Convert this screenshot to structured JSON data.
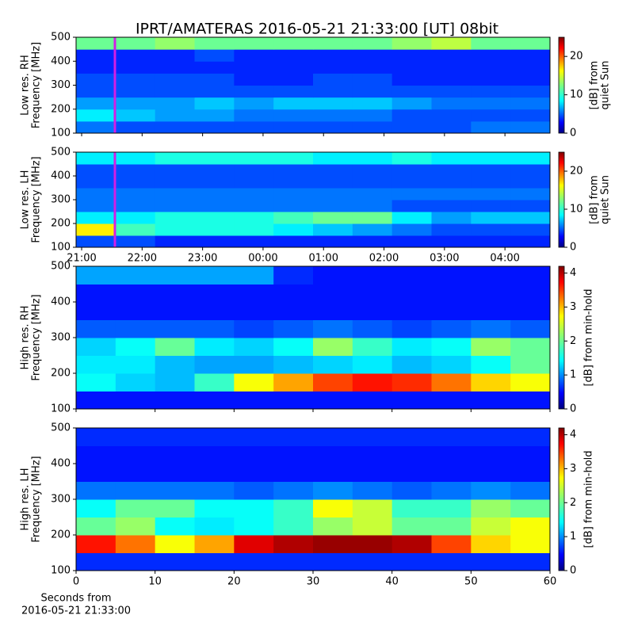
{
  "chart_data": [
    {
      "type": "heatmap",
      "title": "IPRT/AMATERAS 2016-05-21 21:33:00 [UT]   08bit",
      "ylabel": [
        "Low res. RH",
        "Frequency [MHz]"
      ],
      "ylim": [
        100,
        500
      ],
      "yticks": [
        100,
        200,
        300,
        400,
        500
      ],
      "xlim": [
        20.908,
        28.745
      ],
      "xticks": [
        21,
        22,
        23,
        24,
        25,
        26,
        27,
        28
      ],
      "xticklabels": false,
      "marker_x": 21.55,
      "marker_color": "#d21ee6",
      "colorbar_label": [
        "[dB] from",
        "quiet Sun"
      ],
      "clim": [
        0,
        25
      ],
      "cticks": [
        0,
        10,
        20
      ],
      "values": [
        [
          6,
          5,
          5,
          5,
          5,
          5,
          5,
          5,
          5,
          5,
          6,
          6
        ],
        [
          9,
          8,
          7,
          7,
          6,
          6,
          6,
          6,
          5,
          5,
          5,
          5
        ],
        [
          7,
          7,
          7,
          8,
          7,
          8,
          8,
          8,
          7,
          6,
          6,
          6
        ],
        [
          5,
          5,
          5,
          5,
          5,
          5,
          5,
          5,
          5,
          5,
          5,
          5
        ],
        [
          5,
          5,
          5,
          5,
          4,
          4,
          5,
          5,
          4,
          4,
          4,
          4
        ],
        [
          4,
          4,
          4,
          4,
          4,
          4,
          4,
          4,
          4,
          4,
          4,
          4
        ],
        [
          4,
          4,
          4,
          5,
          4,
          4,
          4,
          4,
          4,
          4,
          4,
          4
        ],
        [
          12,
          12,
          13,
          12,
          12,
          12,
          12,
          12,
          13,
          14,
          12,
          12
        ]
      ]
    },
    {
      "type": "heatmap",
      "ylabel": [
        "Low res. LH",
        "Frequency [MHz]"
      ],
      "ylim": [
        100,
        500
      ],
      "yticks": [
        100,
        200,
        300,
        400,
        500
      ],
      "xlim": [
        20.908,
        28.745
      ],
      "xticks": [
        {
          "value": 21,
          "label": "21:00"
        },
        {
          "value": 22,
          "label": "22:00"
        },
        {
          "value": 23,
          "label": "23:00"
        },
        {
          "value": 24,
          "label": "00:00"
        },
        {
          "value": 25,
          "label": "01:00"
        },
        {
          "value": 26,
          "label": "02:00"
        },
        {
          "value": 27,
          "label": "03:00"
        },
        {
          "value": 28,
          "label": "04:00"
        }
      ],
      "marker_x": 21.55,
      "marker_color": "#d21ee6",
      "colorbar_label": [
        "[dB] from",
        "quiet Sun"
      ],
      "clim": [
        0,
        25
      ],
      "cticks": [
        0,
        10,
        20
      ],
      "values": [
        [
          5,
          5,
          4,
          4,
          4,
          4,
          4,
          4,
          4,
          4,
          4,
          4
        ],
        [
          16,
          11,
          10,
          10,
          10,
          9,
          8,
          7,
          6,
          5,
          5,
          5
        ],
        [
          9,
          9,
          10,
          10,
          10,
          11,
          12,
          12,
          9,
          7,
          8,
          8
        ],
        [
          6,
          6,
          6,
          6,
          6,
          6,
          6,
          6,
          5,
          5,
          5,
          5
        ],
        [
          6,
          6,
          6,
          6,
          6,
          6,
          6,
          6,
          6,
          6,
          6,
          6
        ],
        [
          5,
          5,
          5,
          5,
          5,
          5,
          5,
          5,
          5,
          5,
          5,
          5
        ],
        [
          5,
          5,
          5,
          5,
          5,
          5,
          5,
          5,
          5,
          5,
          5,
          5
        ],
        [
          9,
          9,
          10,
          10,
          10,
          10,
          9,
          9,
          10,
          9,
          9,
          9
        ]
      ]
    },
    {
      "type": "heatmap",
      "ylabel": [
        "High res. RH",
        "Frequency [MHz]"
      ],
      "ylim": [
        100,
        500
      ],
      "yticks": [
        100,
        200,
        300,
        400,
        500
      ],
      "xlim": [
        0,
        60
      ],
      "xticks": [
        0,
        10,
        20,
        30,
        40,
        50,
        60
      ],
      "xticklabels": false,
      "colorbar_label": [
        "[dB] from min-hold"
      ],
      "clim": [
        0,
        4.2
      ],
      "cticks": [
        0,
        1,
        2,
        3,
        4
      ],
      "values": [
        [
          0.6,
          0.6,
          0.6,
          0.6,
          0.6,
          0.6,
          0.6,
          0.6,
          0.6,
          0.6,
          0.6,
          0.6
        ],
        [
          1.6,
          1.4,
          1.3,
          1.8,
          2.6,
          3.0,
          3.4,
          3.6,
          3.5,
          3.2,
          2.8,
          2.6
        ],
        [
          1.5,
          1.5,
          1.3,
          1.2,
          1.2,
          1.3,
          1.4,
          1.5,
          1.3,
          1.4,
          1.6,
          2.0
        ],
        [
          1.4,
          1.6,
          2.0,
          1.5,
          1.4,
          1.6,
          2.2,
          1.8,
          1.5,
          1.6,
          2.2,
          2.0
        ],
        [
          0.9,
          0.9,
          0.9,
          0.9,
          0.8,
          0.9,
          1.0,
          0.9,
          0.8,
          0.9,
          1.0,
          0.9
        ],
        [
          0.6,
          0.6,
          0.6,
          0.6,
          0.6,
          0.6,
          0.6,
          0.6,
          0.6,
          0.6,
          0.6,
          0.6
        ],
        [
          0.6,
          0.6,
          0.6,
          0.6,
          0.6,
          0.6,
          0.6,
          0.6,
          0.6,
          0.6,
          0.6,
          0.6
        ],
        [
          1.2,
          1.2,
          1.2,
          1.2,
          1.2,
          0.7,
          0.6,
          0.6,
          0.6,
          0.6,
          0.6,
          0.6
        ]
      ]
    },
    {
      "type": "heatmap",
      "ylabel": [
        "High res. LH",
        "Frequency [MHz]"
      ],
      "ylim": [
        100,
        500
      ],
      "yticks": [
        100,
        200,
        300,
        400,
        500
      ],
      "xlim": [
        0,
        60
      ],
      "xticks": [
        0,
        10,
        20,
        30,
        40,
        50,
        60
      ],
      "xlabel": [
        "Seconds from",
        "2016-05-21 21:33:00"
      ],
      "colorbar_label": [
        "[dB] from min-hold"
      ],
      "clim": [
        0,
        4.2
      ],
      "cticks": [
        0,
        1,
        2,
        3,
        4
      ],
      "values": [
        [
          0.7,
          0.7,
          0.7,
          0.7,
          0.7,
          0.7,
          0.7,
          0.7,
          0.7,
          0.7,
          0.7,
          0.7
        ],
        [
          3.6,
          3.2,
          2.6,
          3.0,
          3.8,
          4.0,
          4.1,
          4.1,
          4.0,
          3.4,
          2.8,
          2.6
        ],
        [
          2.0,
          2.2,
          1.6,
          1.5,
          1.6,
          1.8,
          2.2,
          2.4,
          2.0,
          2.0,
          2.4,
          2.6
        ],
        [
          1.6,
          2.0,
          2.0,
          1.6,
          1.6,
          1.8,
          2.6,
          2.4,
          1.8,
          1.8,
          2.2,
          2.0
        ],
        [
          1.0,
          1.0,
          1.0,
          1.0,
          0.9,
          1.0,
          1.1,
          1.0,
          0.9,
          1.0,
          1.1,
          1.0
        ],
        [
          0.6,
          0.6,
          0.6,
          0.6,
          0.6,
          0.6,
          0.6,
          0.6,
          0.6,
          0.6,
          0.6,
          0.6
        ],
        [
          0.6,
          0.6,
          0.6,
          0.6,
          0.6,
          0.6,
          0.6,
          0.6,
          0.6,
          0.6,
          0.6,
          0.6
        ],
        [
          0.7,
          0.7,
          0.7,
          0.7,
          0.7,
          0.7,
          0.7,
          0.7,
          0.7,
          0.7,
          0.7,
          0.7
        ]
      ]
    }
  ]
}
